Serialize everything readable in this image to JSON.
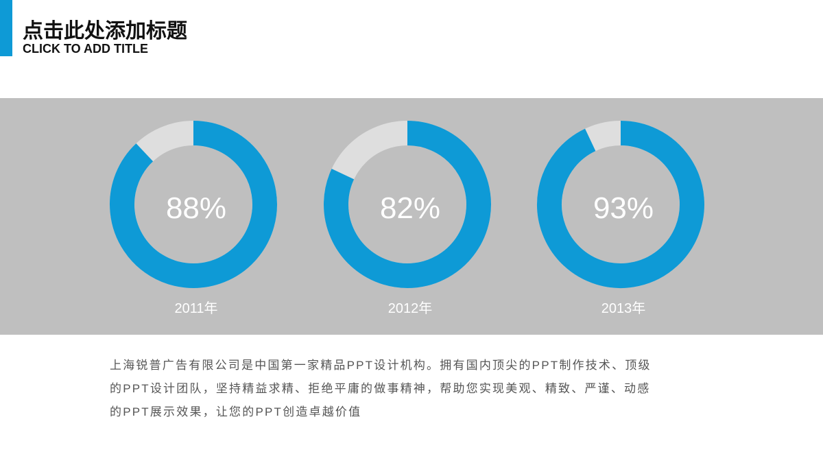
{
  "header": {
    "title": "点击此处添加标题",
    "subtitle": "CLICK TO ADD TITLE"
  },
  "chart_data": [
    {
      "type": "donut",
      "title": "2011年",
      "values": [
        88
      ],
      "value_labels": [
        "88%"
      ],
      "ylim": [
        0,
        100
      ],
      "color": "#0e9ad6",
      "track_color": "#dedede"
    },
    {
      "type": "donut",
      "title": "2012年",
      "values": [
        82
      ],
      "value_labels": [
        "82%"
      ],
      "ylim": [
        0,
        100
      ],
      "color": "#0e9ad6",
      "track_color": "#dedede"
    },
    {
      "type": "donut",
      "title": "2013年",
      "values": [
        93
      ],
      "value_labels": [
        "93%"
      ],
      "ylim": [
        0,
        100
      ],
      "color": "#0e9ad6",
      "track_color": "#dedede"
    }
  ],
  "body": {
    "lines": [
      "上海锐普广告有限公司是中国第一家精品PPT设计机构。拥有国内顶尖的PPT制作技术、顶级",
      "的PPT设计团队，坚持精益求精、拒绝平庸的做事精神，帮助您实现美观、精致、严谨、动感",
      "的PPT展示效果，让您的PPT创造卓越价值"
    ]
  }
}
